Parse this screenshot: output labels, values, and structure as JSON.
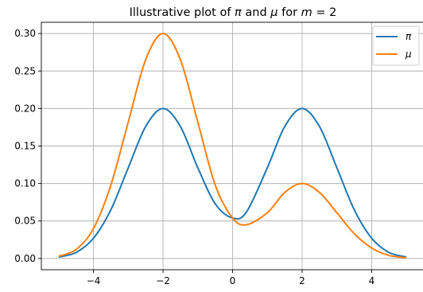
{
  "chart_data": {
    "type": "line",
    "title": "Illustrative plot of π and μ for m = 2",
    "title_parts": {
      "prefix": "Illustrative plot of ",
      "sym1": "π",
      "mid": " and ",
      "sym2": "μ",
      "for": " for ",
      "m": "m",
      "eq": " = 2"
    },
    "xlabel": "",
    "ylabel": "",
    "xlim": [
      -5.5,
      5.5
    ],
    "ylim": [
      -0.015,
      0.315
    ],
    "xticks": [
      -4,
      -2,
      0,
      2,
      4
    ],
    "xtick_labels": [
      "−4",
      "−2",
      "0",
      "2",
      "4"
    ],
    "yticks": [
      0.0,
      0.05,
      0.1,
      0.15,
      0.2,
      0.25,
      0.3
    ],
    "ytick_labels": [
      "0.00",
      "0.05",
      "0.10",
      "0.15",
      "0.20",
      "0.25",
      "0.30"
    ],
    "grid": true,
    "legend_position": "top-right",
    "x": [
      -5.0,
      -4.5,
      -4.0,
      -3.5,
      -3.0,
      -2.5,
      -2.0,
      -1.5,
      -1.0,
      -0.5,
      0.0,
      0.4,
      1.0,
      1.5,
      2.0,
      2.5,
      3.0,
      3.5,
      4.0,
      4.5,
      5.0
    ],
    "series": [
      {
        "name": "π",
        "color": "#1f77b4",
        "values": [
          0.002,
          0.008,
          0.027,
          0.065,
          0.121,
          0.176,
          0.2,
          0.176,
          0.121,
          0.073,
          0.054,
          0.062,
          0.121,
          0.176,
          0.2,
          0.176,
          0.121,
          0.065,
          0.027,
          0.008,
          0.002
        ]
      },
      {
        "name": "μ",
        "color": "#ff7f0e",
        "values": [
          0.003,
          0.012,
          0.04,
          0.098,
          0.182,
          0.265,
          0.3,
          0.265,
          0.182,
          0.098,
          0.054,
          0.045,
          0.061,
          0.088,
          0.1,
          0.088,
          0.061,
          0.033,
          0.014,
          0.004,
          0.001
        ]
      }
    ]
  }
}
